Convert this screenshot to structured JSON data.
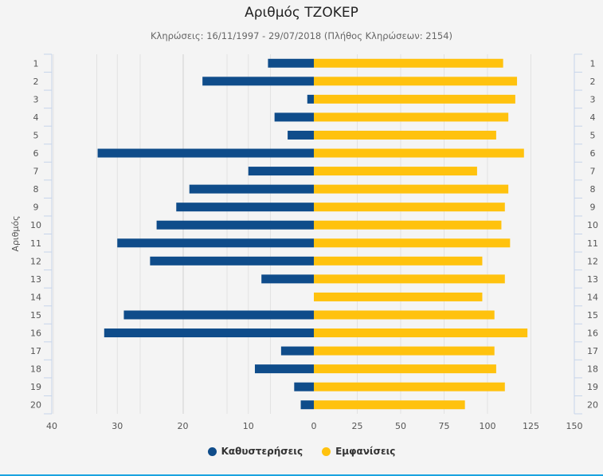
{
  "chart_data": {
    "type": "bar",
    "orientation": "horizontal-diverging",
    "title": "Αριθμός ΤΖΟΚΕΡ",
    "subtitle": "Κληρώσεις: 16/11/1997 - 29/07/2018 (Πλήθος Κληρώσεων: 2154)",
    "ylabel": "Αριθμός",
    "categories": [
      "1",
      "2",
      "3",
      "4",
      "5",
      "6",
      "7",
      "8",
      "9",
      "10",
      "11",
      "12",
      "13",
      "14",
      "15",
      "16",
      "17",
      "18",
      "19",
      "20"
    ],
    "series": [
      {
        "name": "Καθυστερήσεις",
        "color": "#0f4c8a",
        "axis": "left",
        "xlim": [
          40,
          0
        ],
        "ticks": [
          "40",
          "30",
          "20",
          "10",
          "0"
        ],
        "values": [
          7,
          17,
          1,
          6,
          4,
          33,
          10,
          19,
          21,
          24,
          30,
          25,
          8,
          0,
          29,
          32,
          5,
          9,
          3,
          2
        ]
      },
      {
        "name": "Εμφανίσεις",
        "color": "#ffc20e",
        "axis": "right",
        "xlim": [
          0,
          150
        ],
        "ticks": [
          "25",
          "50",
          "75",
          "100",
          "125",
          "150"
        ],
        "values": [
          109,
          117,
          116,
          112,
          105,
          121,
          94,
          112,
          110,
          108,
          113,
          97,
          110,
          97,
          104,
          123,
          104,
          105,
          110,
          87
        ]
      }
    ],
    "grid": true,
    "legend": "bottom"
  }
}
